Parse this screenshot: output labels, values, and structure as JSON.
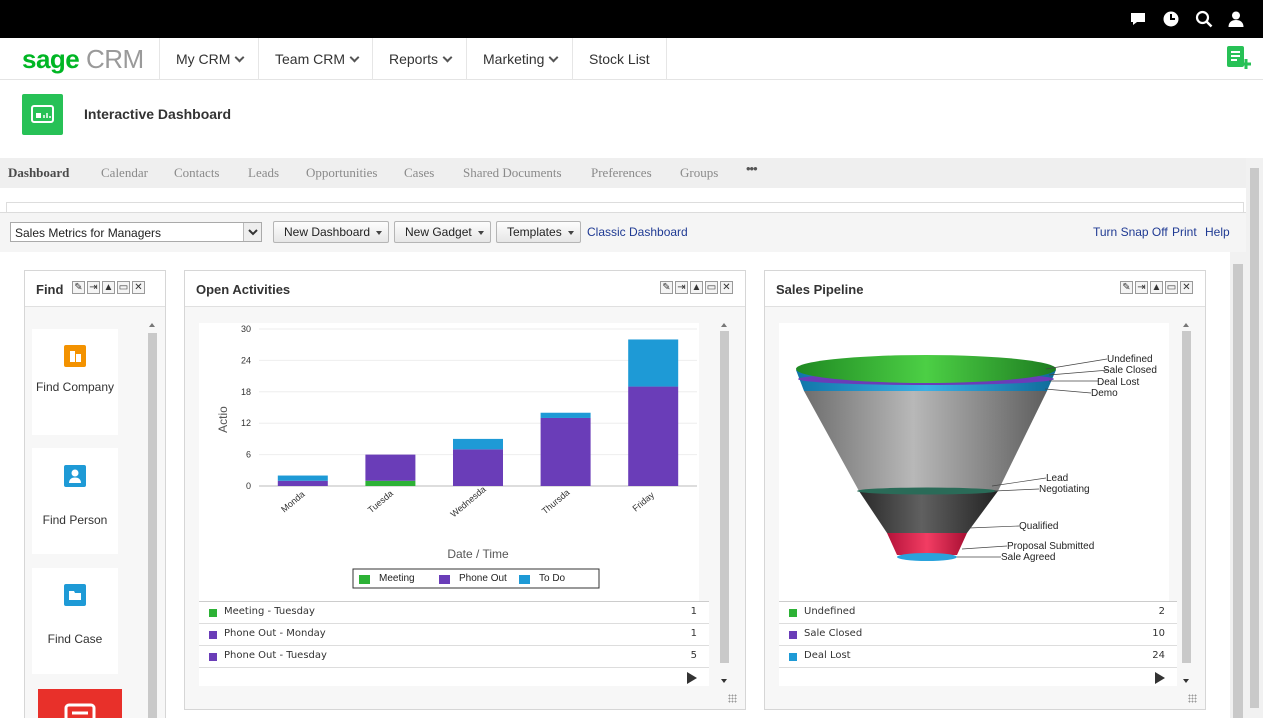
{
  "brand": {
    "sage": "sage",
    "crm": "CRM"
  },
  "nav": {
    "items": [
      {
        "label": "My CRM",
        "dropdown": true
      },
      {
        "label": "Team CRM",
        "dropdown": true
      },
      {
        "label": "Reports",
        "dropdown": true
      },
      {
        "label": "Marketing",
        "dropdown": true
      },
      {
        "label": "Stock List",
        "dropdown": false
      }
    ]
  },
  "topbar_icons": [
    "chat-icon",
    "clock-icon",
    "search-icon",
    "user-icon"
  ],
  "page": {
    "title": "Interactive Dashboard"
  },
  "tabs": [
    "Dashboard",
    "Calendar",
    "Contacts",
    "Leads",
    "Opportunities",
    "Cases",
    "Shared Documents",
    "Preferences",
    "Groups",
    "•••"
  ],
  "toolbar": {
    "dashboard_select": "Sales Metrics for Managers",
    "new_dashboard": "New Dashboard",
    "new_gadget": "New Gadget",
    "templates": "Templates",
    "classic": "Classic Dashboard",
    "snap": "Turn Snap Off",
    "print": "Print",
    "help": "Help"
  },
  "find_gadget": {
    "title": "Find",
    "tiles": [
      {
        "label": "Find Company",
        "icon": "company-icon",
        "color": "#f39200"
      },
      {
        "label": "Find Person",
        "icon": "person-icon",
        "color": "#1e9ad6"
      },
      {
        "label": "Find Case",
        "icon": "folder-icon",
        "color": "#1e9ad6"
      }
    ]
  },
  "activities_gadget": {
    "title": "Open Activities",
    "list": [
      {
        "label": "Meeting - Tuesday",
        "value": "1",
        "color": "#2db236"
      },
      {
        "label": "Phone Out - Monday",
        "value": "1",
        "color": "#6a3db8"
      },
      {
        "label": "Phone Out - Tuesday",
        "value": "5",
        "color": "#6a3db8"
      }
    ]
  },
  "pipeline_gadget": {
    "title": "Sales Pipeline",
    "list": [
      {
        "label": "Undefined",
        "value": "2",
        "color": "#2db236"
      },
      {
        "label": "Sale Closed",
        "value": "10",
        "color": "#6a3db8"
      },
      {
        "label": "Deal Lost",
        "value": "24",
        "color": "#1e9ad6"
      }
    ],
    "funnel_labels": [
      "Undefined",
      "Sale Closed",
      "Deal Lost",
      "Demo",
      "Lead",
      "Negotiating",
      "Qualified",
      "Proposal Submitted",
      "Sale Agreed"
    ]
  },
  "chart_data": [
    {
      "type": "bar",
      "stacked": true,
      "categories": [
        "Monda",
        "Tuesda",
        "Wednesda",
        "Thursda",
        "Friday"
      ],
      "series": [
        {
          "name": "Meeting",
          "color": "#2db236",
          "values": [
            0,
            1,
            0,
            0,
            0
          ]
        },
        {
          "name": "Phone Out",
          "color": "#6a3db8",
          "values": [
            1,
            5,
            7,
            13,
            19
          ]
        },
        {
          "name": "To Do",
          "color": "#1e9ad6",
          "values": [
            1,
            0,
            2,
            1,
            9
          ]
        }
      ],
      "xlabel": "Date / Time",
      "ylabel": "Actio",
      "yticks": [
        0,
        6,
        12,
        18,
        24,
        30
      ],
      "ylim": [
        0,
        30
      ],
      "legend": "bottom"
    },
    {
      "type": "funnel",
      "stages": [
        "Undefined",
        "Sale Closed",
        "Deal Lost",
        "Demo",
        "Lead",
        "Negotiating",
        "Qualified",
        "Proposal Submitted",
        "Sale Agreed"
      ]
    }
  ]
}
